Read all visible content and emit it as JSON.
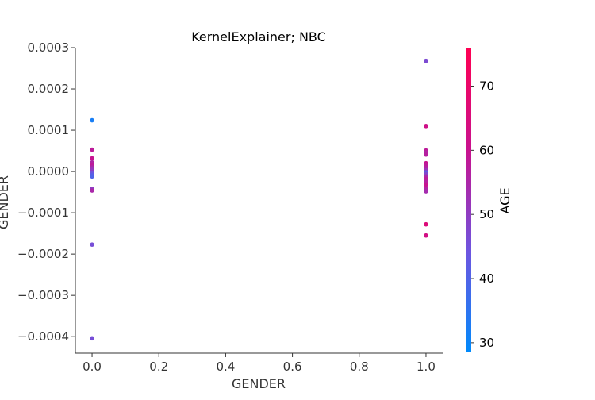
{
  "chart_data": {
    "type": "scatter",
    "title": "KernelExplainer; NBC",
    "xlabel": "GENDER",
    "ylabel": "GENDER",
    "xlim": [
      -0.05,
      1.05
    ],
    "ylim": [
      -0.00044,
      0.0003
    ],
    "x_ticks": [
      {
        "value": 0.0,
        "label": "0.0"
      },
      {
        "value": 0.2,
        "label": "0.2"
      },
      {
        "value": 0.4,
        "label": "0.4"
      },
      {
        "value": 0.6,
        "label": "0.6"
      },
      {
        "value": 0.8,
        "label": "0.8"
      },
      {
        "value": 1.0,
        "label": "1.0"
      }
    ],
    "y_ticks": [
      {
        "value": 0.0003,
        "label": "0.0003"
      },
      {
        "value": 0.0002,
        "label": "0.0002"
      },
      {
        "value": 0.0001,
        "label": "0.0001"
      },
      {
        "value": 0.0,
        "label": "0.0000"
      },
      {
        "value": -0.0001,
        "label": "−0.0001"
      },
      {
        "value": -0.0002,
        "label": "−0.0002"
      },
      {
        "value": -0.0003,
        "label": "−0.0003"
      },
      {
        "value": -0.0004,
        "label": "−0.0004"
      }
    ],
    "colorbar": {
      "label": "AGE",
      "range": [
        28.5,
        76
      ],
      "ticks": [
        {
          "value": 30,
          "label": "30"
        },
        {
          "value": 40,
          "label": "40"
        },
        {
          "value": 50,
          "label": "50"
        },
        {
          "value": 60,
          "label": "60"
        },
        {
          "value": 70,
          "label": "70"
        }
      ],
      "colors": [
        "#008afb",
        "#6d55e0",
        "#c8128f",
        "#ff0052"
      ]
    },
    "points": [
      {
        "x": 0,
        "y": 0.000124,
        "age": 32
      },
      {
        "x": 0,
        "y": 5.3e-05,
        "age": 58
      },
      {
        "x": 0,
        "y": 3.2e-05,
        "age": 60
      },
      {
        "x": 0,
        "y": 2.2e-05,
        "age": 56
      },
      {
        "x": 0,
        "y": 1.5e-05,
        "age": 58
      },
      {
        "x": 0,
        "y": 1e-05,
        "age": 55
      },
      {
        "x": 0,
        "y": 5e-06,
        "age": 52
      },
      {
        "x": 0,
        "y": 1e-06,
        "age": 50
      },
      {
        "x": 0,
        "y": -3e-06,
        "age": 45
      },
      {
        "x": 0,
        "y": -8e-06,
        "age": 42
      },
      {
        "x": 0,
        "y": -1.2e-05,
        "age": 40
      },
      {
        "x": 0,
        "y": -4.2e-05,
        "age": 50
      },
      {
        "x": 0,
        "y": -4.6e-05,
        "age": 55
      },
      {
        "x": 0,
        "y": -0.000177,
        "age": 46
      },
      {
        "x": 0,
        "y": -0.000404,
        "age": 46
      },
      {
        "x": 1,
        "y": 0.000268,
        "age": 47
      },
      {
        "x": 1,
        "y": 0.00011,
        "age": 62
      },
      {
        "x": 1,
        "y": 5.1e-05,
        "age": 58
      },
      {
        "x": 1,
        "y": 4.6e-05,
        "age": 56
      },
      {
        "x": 1,
        "y": 4.1e-05,
        "age": 57
      },
      {
        "x": 1,
        "y": 2e-05,
        "age": 60
      },
      {
        "x": 1,
        "y": 1.4e-05,
        "age": 58
      },
      {
        "x": 1,
        "y": 8e-06,
        "age": 56
      },
      {
        "x": 1,
        "y": 3e-06,
        "age": 52
      },
      {
        "x": 1,
        "y": -2e-06,
        "age": 40
      },
      {
        "x": 1,
        "y": -6e-06,
        "age": 48
      },
      {
        "x": 1,
        "y": -1.2e-05,
        "age": 55
      },
      {
        "x": 1,
        "y": -1.8e-05,
        "age": 58
      },
      {
        "x": 1,
        "y": -2.4e-05,
        "age": 57
      },
      {
        "x": 1,
        "y": -3.2e-05,
        "age": 60
      },
      {
        "x": 1,
        "y": -4.2e-05,
        "age": 56
      },
      {
        "x": 1,
        "y": -4.8e-05,
        "age": 54
      },
      {
        "x": 1,
        "y": -0.000128,
        "age": 66
      },
      {
        "x": 1,
        "y": -0.000155,
        "age": 63
      }
    ]
  }
}
